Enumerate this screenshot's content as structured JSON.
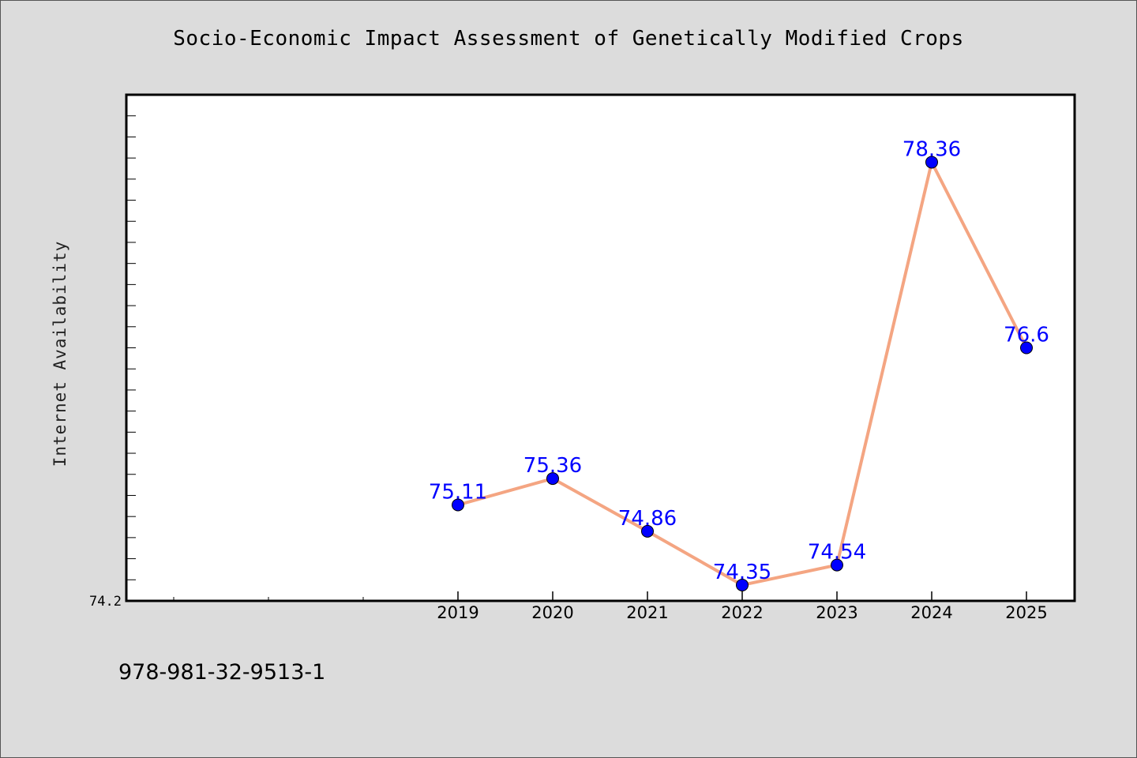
{
  "chart_data": {
    "type": "line",
    "title": "Socio-Economic Impact Assessment of Genetically Modified Crops",
    "ylabel": "Internet Availability",
    "xlabel": "",
    "categories": [
      "2019",
      "2020",
      "2021",
      "2022",
      "2023",
      "2024",
      "2025"
    ],
    "series": [
      {
        "values": [
          75.11,
          75.36,
          74.86,
          74.35,
          74.54,
          78.36,
          76.6
        ],
        "labels": [
          "75.11",
          "75.36",
          "74.86",
          "74.35",
          "74.54",
          "78.36",
          "76.6"
        ]
      }
    ],
    "ylim": [
      74.2,
      79.0
    ],
    "yticks_labeled": [
      "74.2"
    ],
    "grid": false,
    "legend": "none",
    "colors": {
      "line": "#f4a582",
      "marker": "#0000ff",
      "data_label": "#0000ff",
      "plot_bg": "#ffffff",
      "page_bg": "#dcdcdc"
    }
  },
  "footer": {
    "isbn": "978-981-32-9513-1"
  }
}
